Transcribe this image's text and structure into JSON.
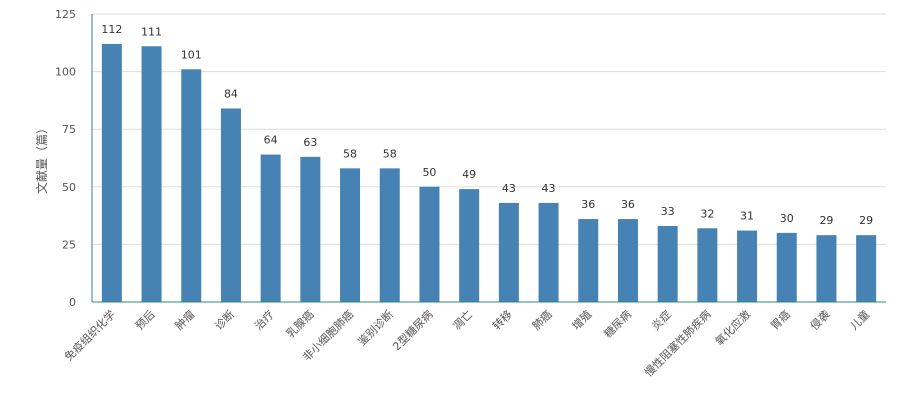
{
  "chart_data": {
    "type": "bar",
    "title": "",
    "xlabel": "",
    "ylabel": "文献量（篇）",
    "ylim": [
      0,
      125
    ],
    "yticks": [
      0,
      25,
      50,
      75,
      100,
      125
    ],
    "grid": true,
    "bar_color": "#4682b4",
    "categories": [
      "免疫组织化学",
      "预后",
      "肿瘤",
      "诊断",
      "治疗",
      "乳腺癌",
      "非小细胞肺癌",
      "鉴别诊断",
      "2型糖尿病",
      "凋亡",
      "转移",
      "肺癌",
      "增殖",
      "糖尿病",
      "炎症",
      "慢性阻塞性肺疾病",
      "氧化应激",
      "胃癌",
      "侵袭",
      "儿童"
    ],
    "values": [
      112,
      111,
      101,
      84,
      64,
      63,
      58,
      58,
      50,
      49,
      43,
      43,
      36,
      36,
      33,
      32,
      31,
      30,
      29,
      29
    ]
  }
}
